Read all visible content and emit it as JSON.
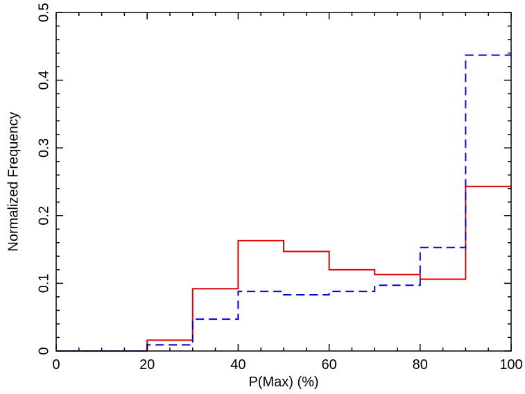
{
  "chart_data": {
    "type": "step-histogram",
    "xlabel": "P(Max) (%)",
    "ylabel": "Normalized Frequency",
    "xlim": [
      0,
      100
    ],
    "ylim": [
      0,
      0.5
    ],
    "x_ticks": [
      "0",
      "20",
      "40",
      "60",
      "80",
      "100"
    ],
    "y_ticks": [
      "0",
      "0.1",
      "0.2",
      "0.3",
      "0.4",
      "0.5"
    ],
    "bin_edges": [
      0,
      10,
      20,
      30,
      40,
      50,
      60,
      70,
      80,
      90,
      100
    ],
    "series": [
      {
        "color": "#e00000",
        "style": "solid",
        "values": [
          0,
          0,
          0.016,
          0.092,
          0.163,
          0.147,
          0.12,
          0.113,
          0.106,
          0.243
        ]
      },
      {
        "color": "#0000e0",
        "style": "dashed",
        "values": [
          0,
          0,
          0.009,
          0.047,
          0.088,
          0.083,
          0.088,
          0.097,
          0.153,
          0.437
        ]
      }
    ]
  }
}
